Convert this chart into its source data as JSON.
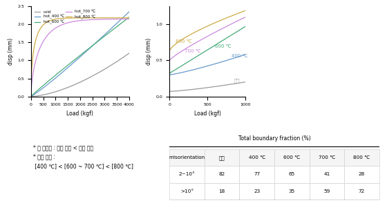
{
  "left_plot": {
    "xlabel": "Load (kgf)",
    "ylabel": "disp (mm)",
    "xlim": [
      0,
      4000
    ],
    "ylim": [
      0.0,
      2.5
    ],
    "xticks": [
      0,
      500,
      1000,
      1500,
      2000,
      2500,
      3000,
      3500,
      4000
    ],
    "yticks": [
      0.0,
      0.5,
      1.0,
      1.5,
      2.0,
      2.5
    ],
    "curves": {
      "cold": {
        "color": "#888888",
        "label": "cold"
      },
      "hot_400": {
        "color": "#5599cc",
        "label": "hot_400 ℃"
      },
      "hot_600": {
        "color": "#44aa88",
        "label": "hot_600 ℃"
      },
      "hot_700": {
        "color": "#bb88cc",
        "label": "hot_700 ℃"
      },
      "hot_800": {
        "color": "#ccaa44",
        "label": "hot_800 ℃"
      }
    }
  },
  "right_plot": {
    "xlabel": "Load (kgf)",
    "ylabel": "disp (mm)",
    "xlim": [
      0,
      1000
    ],
    "ylim": [
      0.0,
      1.25
    ],
    "xticks": [
      0,
      500,
      1000
    ],
    "yticks": [
      0.0,
      0.5,
      1.0
    ],
    "labels": {
      "cold": "상온",
      "hot_400": "400 ℃",
      "hot_600": "600 ℃",
      "hot_700": "700 ℃",
      "hot_800": "800 ℃"
    }
  },
  "annotations_left": [
    "* 점 성형량 : 상온 압축 < 열간 압축",
    "* 성형 하중 :",
    "[400 ℃] < [600 ~ 700 ℃] < [800 ℃]"
  ],
  "table": {
    "title": "Total boundary fraction (%)",
    "col_headers": [
      "misorientation",
      "상온",
      "400 ℃",
      "600 ℃",
      "700 ℃",
      "800 ℃"
    ],
    "rows": [
      [
        "2~10°",
        82,
        77,
        65,
        41,
        28
      ],
      [
        ">10°",
        18,
        23,
        35,
        59,
        72
      ]
    ]
  },
  "background_color": "#ffffff"
}
